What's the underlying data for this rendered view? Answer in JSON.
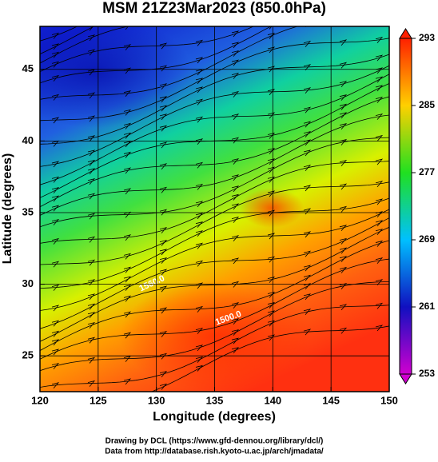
{
  "chart_data": {
    "type": "map",
    "title": "MSM 21Z23Mar2023 (850.0hPa)",
    "xlabel": "Longitude (degrees)",
    "ylabel": "Latitude  (degrees)",
    "xlim": [
      120,
      150
    ],
    "xticks": [
      120,
      125,
      130,
      135,
      140,
      145,
      150
    ],
    "ylim": [
      22.5,
      48
    ],
    "yticks": [
      25,
      30,
      35,
      40,
      45
    ],
    "grid": true,
    "colorbar": {
      "lim": [
        253,
        293
      ],
      "ticks": [
        253,
        261,
        269,
        277,
        285,
        293
      ]
    },
    "annotations": [
      "1500.0",
      "1560.0"
    ]
  },
  "credits": [
    "Drawing by DCL (https://www.gfd-dennou.org/library/dcl/)",
    "Data from http://database.rish.kyoto-u.ac.jp/arch/jmadata/"
  ]
}
